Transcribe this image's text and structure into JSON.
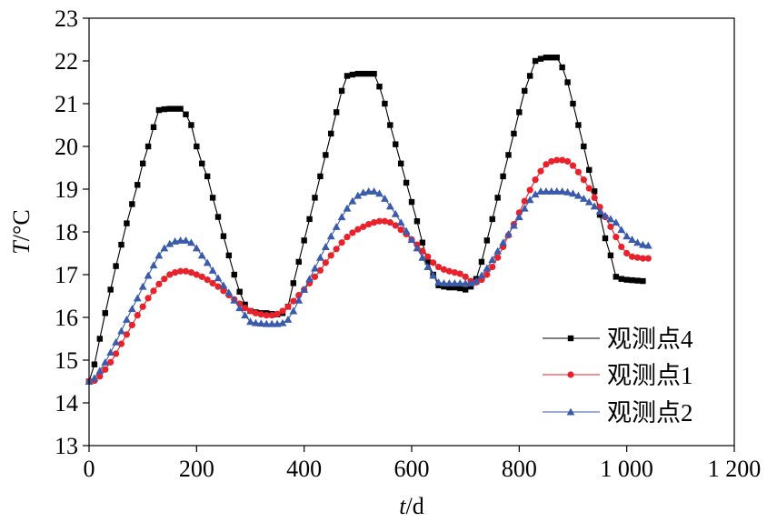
{
  "chart_data": {
    "type": "line",
    "xlabel": "t/d",
    "ylabel": "T/°C",
    "xlim": [
      0,
      1200
    ],
    "ylim": [
      13,
      23
    ],
    "xticks": [
      0,
      200,
      400,
      600,
      800,
      1000,
      1200
    ],
    "xtick_labels": [
      "0",
      "200",
      "400",
      "600",
      "800",
      "1 000",
      "1 200"
    ],
    "yticks": [
      13,
      14,
      15,
      16,
      17,
      18,
      19,
      20,
      21,
      22,
      23
    ],
    "ytick_labels": [
      "13",
      "14",
      "15",
      "16",
      "17",
      "18",
      "19",
      "20",
      "21",
      "22",
      "23"
    ],
    "grid": false,
    "legend_position": "bottom-right",
    "series": [
      {
        "name": "观测点4",
        "color": "#000000",
        "marker": "square",
        "points": [
          [
            0,
            14.5
          ],
          [
            10,
            14.9
          ],
          [
            20,
            15.5
          ],
          [
            30,
            16.1
          ],
          [
            40,
            16.65
          ],
          [
            50,
            17.2
          ],
          [
            60,
            17.7
          ],
          [
            70,
            18.2
          ],
          [
            80,
            18.65
          ],
          [
            90,
            19.1
          ],
          [
            100,
            19.6
          ],
          [
            110,
            20.0
          ],
          [
            120,
            20.45
          ],
          [
            130,
            20.85
          ],
          [
            140,
            20.87
          ],
          [
            150,
            20.88
          ],
          [
            160,
            20.88
          ],
          [
            170,
            20.88
          ],
          [
            180,
            20.75
          ],
          [
            190,
            20.5
          ],
          [
            200,
            20.0
          ],
          [
            210,
            19.6
          ],
          [
            220,
            19.3
          ],
          [
            230,
            18.8
          ],
          [
            240,
            18.35
          ],
          [
            250,
            17.9
          ],
          [
            260,
            17.45
          ],
          [
            270,
            17.0
          ],
          [
            280,
            16.6
          ],
          [
            290,
            16.3
          ],
          [
            300,
            16.15
          ],
          [
            310,
            16.12
          ],
          [
            320,
            16.1
          ],
          [
            330,
            16.1
          ],
          [
            340,
            16.08
          ],
          [
            350,
            16.07
          ],
          [
            360,
            16.1
          ],
          [
            370,
            16.25
          ],
          [
            380,
            16.8
          ],
          [
            390,
            17.3
          ],
          [
            400,
            17.8
          ],
          [
            410,
            18.3
          ],
          [
            420,
            18.8
          ],
          [
            430,
            19.3
          ],
          [
            440,
            19.8
          ],
          [
            450,
            20.3
          ],
          [
            460,
            20.8
          ],
          [
            470,
            21.3
          ],
          [
            480,
            21.65
          ],
          [
            490,
            21.68
          ],
          [
            500,
            21.7
          ],
          [
            510,
            21.7
          ],
          [
            520,
            21.7
          ],
          [
            530,
            21.7
          ],
          [
            540,
            21.4
          ],
          [
            550,
            21.0
          ],
          [
            560,
            20.5
          ],
          [
            570,
            20.05
          ],
          [
            580,
            19.6
          ],
          [
            590,
            19.15
          ],
          [
            600,
            18.7
          ],
          [
            610,
            18.25
          ],
          [
            620,
            17.75
          ],
          [
            630,
            17.3
          ],
          [
            640,
            17.0
          ],
          [
            650,
            16.75
          ],
          [
            660,
            16.72
          ],
          [
            670,
            16.7
          ],
          [
            680,
            16.7
          ],
          [
            690,
            16.68
          ],
          [
            700,
            16.65
          ],
          [
            710,
            16.72
          ],
          [
            720,
            16.9
          ],
          [
            730,
            17.3
          ],
          [
            740,
            17.8
          ],
          [
            750,
            18.3
          ],
          [
            760,
            18.8
          ],
          [
            770,
            19.3
          ],
          [
            780,
            19.8
          ],
          [
            790,
            20.3
          ],
          [
            800,
            20.8
          ],
          [
            810,
            21.3
          ],
          [
            820,
            21.65
          ],
          [
            830,
            22.0
          ],
          [
            840,
            22.05
          ],
          [
            850,
            22.08
          ],
          [
            860,
            22.08
          ],
          [
            870,
            22.08
          ],
          [
            880,
            21.85
          ],
          [
            890,
            21.5
          ],
          [
            900,
            21.0
          ],
          [
            910,
            20.5
          ],
          [
            920,
            20.0
          ],
          [
            930,
            19.45
          ],
          [
            940,
            18.95
          ],
          [
            950,
            18.4
          ],
          [
            960,
            17.85
          ],
          [
            970,
            17.45
          ],
          [
            980,
            16.95
          ],
          [
            990,
            16.9
          ],
          [
            1000,
            16.88
          ],
          [
            1010,
            16.87
          ],
          [
            1020,
            16.86
          ],
          [
            1030,
            16.85
          ]
        ]
      },
      {
        "name": "观测点1",
        "color": "#e8212a",
        "marker": "circle",
        "points": [
          [
            0,
            14.5
          ],
          [
            10,
            14.52
          ],
          [
            20,
            14.62
          ],
          [
            30,
            14.78
          ],
          [
            40,
            14.95
          ],
          [
            50,
            15.15
          ],
          [
            60,
            15.38
          ],
          [
            70,
            15.6
          ],
          [
            80,
            15.82
          ],
          [
            90,
            16.05
          ],
          [
            100,
            16.25
          ],
          [
            110,
            16.45
          ],
          [
            120,
            16.62
          ],
          [
            130,
            16.78
          ],
          [
            140,
            16.9
          ],
          [
            150,
            17.0
          ],
          [
            160,
            17.05
          ],
          [
            170,
            17.08
          ],
          [
            180,
            17.08
          ],
          [
            190,
            17.05
          ],
          [
            200,
            17.0
          ],
          [
            210,
            16.95
          ],
          [
            220,
            16.88
          ],
          [
            230,
            16.8
          ],
          [
            240,
            16.72
          ],
          [
            250,
            16.62
          ],
          [
            260,
            16.52
          ],
          [
            270,
            16.42
          ],
          [
            280,
            16.32
          ],
          [
            290,
            16.22
          ],
          [
            300,
            16.15
          ],
          [
            310,
            16.1
          ],
          [
            320,
            16.07
          ],
          [
            330,
            16.05
          ],
          [
            340,
            16.05
          ],
          [
            350,
            16.08
          ],
          [
            360,
            16.15
          ],
          [
            370,
            16.25
          ],
          [
            380,
            16.38
          ],
          [
            390,
            16.52
          ],
          [
            400,
            16.65
          ],
          [
            410,
            16.8
          ],
          [
            420,
            16.95
          ],
          [
            430,
            17.1
          ],
          [
            440,
            17.28
          ],
          [
            450,
            17.45
          ],
          [
            460,
            17.6
          ],
          [
            470,
            17.75
          ],
          [
            480,
            17.88
          ],
          [
            490,
            17.98
          ],
          [
            500,
            18.06
          ],
          [
            510,
            18.12
          ],
          [
            520,
            18.18
          ],
          [
            530,
            18.22
          ],
          [
            540,
            18.25
          ],
          [
            550,
            18.25
          ],
          [
            560,
            18.22
          ],
          [
            570,
            18.15
          ],
          [
            580,
            18.05
          ],
          [
            590,
            17.95
          ],
          [
            600,
            17.82
          ],
          [
            610,
            17.7
          ],
          [
            620,
            17.55
          ],
          [
            630,
            17.42
          ],
          [
            640,
            17.28
          ],
          [
            650,
            17.18
          ],
          [
            660,
            17.12
          ],
          [
            670,
            17.08
          ],
          [
            680,
            17.05
          ],
          [
            690,
            17.02
          ],
          [
            700,
            16.95
          ],
          [
            710,
            16.85
          ],
          [
            720,
            16.82
          ],
          [
            730,
            16.88
          ],
          [
            740,
            17.0
          ],
          [
            750,
            17.18
          ],
          [
            760,
            17.4
          ],
          [
            770,
            17.65
          ],
          [
            780,
            17.92
          ],
          [
            790,
            18.18
          ],
          [
            800,
            18.45
          ],
          [
            810,
            18.72
          ],
          [
            820,
            18.98
          ],
          [
            830,
            19.22
          ],
          [
            840,
            19.42
          ],
          [
            850,
            19.58
          ],
          [
            860,
            19.65
          ],
          [
            870,
            19.68
          ],
          [
            880,
            19.68
          ],
          [
            890,
            19.65
          ],
          [
            900,
            19.55
          ],
          [
            910,
            19.4
          ],
          [
            920,
            19.22
          ],
          [
            930,
            19.02
          ],
          [
            940,
            18.8
          ],
          [
            950,
            18.58
          ],
          [
            960,
            18.35
          ],
          [
            970,
            18.12
          ],
          [
            980,
            17.88
          ],
          [
            990,
            17.65
          ],
          [
            1000,
            17.5
          ],
          [
            1010,
            17.42
          ],
          [
            1020,
            17.4
          ],
          [
            1030,
            17.38
          ],
          [
            1040,
            17.38
          ]
        ]
      },
      {
        "name": "观测点2",
        "color": "#3a5bab",
        "marker": "triangle",
        "points": [
          [
            0,
            14.5
          ],
          [
            10,
            14.58
          ],
          [
            20,
            14.75
          ],
          [
            30,
            14.95
          ],
          [
            40,
            15.18
          ],
          [
            50,
            15.42
          ],
          [
            60,
            15.68
          ],
          [
            70,
            15.95
          ],
          [
            80,
            16.2
          ],
          [
            90,
            16.45
          ],
          [
            100,
            16.72
          ],
          [
            110,
            16.98
          ],
          [
            120,
            17.22
          ],
          [
            130,
            17.45
          ],
          [
            140,
            17.62
          ],
          [
            150,
            17.72
          ],
          [
            160,
            17.78
          ],
          [
            170,
            17.8
          ],
          [
            180,
            17.8
          ],
          [
            190,
            17.75
          ],
          [
            200,
            17.62
          ],
          [
            210,
            17.45
          ],
          [
            220,
            17.28
          ],
          [
            230,
            17.1
          ],
          [
            240,
            16.92
          ],
          [
            250,
            16.75
          ],
          [
            260,
            16.58
          ],
          [
            270,
            16.4
          ],
          [
            280,
            16.22
          ],
          [
            290,
            16.05
          ],
          [
            300,
            15.9
          ],
          [
            310,
            15.87
          ],
          [
            320,
            15.86
          ],
          [
            330,
            15.85
          ],
          [
            340,
            15.85
          ],
          [
            350,
            15.85
          ],
          [
            360,
            15.87
          ],
          [
            370,
            15.95
          ],
          [
            380,
            16.15
          ],
          [
            390,
            16.4
          ],
          [
            400,
            16.65
          ],
          [
            410,
            16.9
          ],
          [
            420,
            17.15
          ],
          [
            430,
            17.4
          ],
          [
            440,
            17.65
          ],
          [
            450,
            17.9
          ],
          [
            460,
            18.12
          ],
          [
            470,
            18.35
          ],
          [
            480,
            18.55
          ],
          [
            490,
            18.72
          ],
          [
            500,
            18.85
          ],
          [
            510,
            18.92
          ],
          [
            520,
            18.95
          ],
          [
            530,
            18.95
          ],
          [
            540,
            18.9
          ],
          [
            550,
            18.78
          ],
          [
            560,
            18.6
          ],
          [
            570,
            18.42
          ],
          [
            580,
            18.22
          ],
          [
            590,
            18.02
          ],
          [
            600,
            17.82
          ],
          [
            610,
            17.62
          ],
          [
            620,
            17.4
          ],
          [
            630,
            17.18
          ],
          [
            640,
            16.98
          ],
          [
            650,
            16.82
          ],
          [
            660,
            16.8
          ],
          [
            670,
            16.8
          ],
          [
            680,
            16.8
          ],
          [
            690,
            16.8
          ],
          [
            700,
            16.8
          ],
          [
            710,
            16.8
          ],
          [
            720,
            16.85
          ],
          [
            730,
            16.98
          ],
          [
            740,
            17.15
          ],
          [
            750,
            17.35
          ],
          [
            760,
            17.55
          ],
          [
            770,
            17.75
          ],
          [
            780,
            17.95
          ],
          [
            790,
            18.15
          ],
          [
            800,
            18.35
          ],
          [
            810,
            18.55
          ],
          [
            820,
            18.75
          ],
          [
            830,
            18.88
          ],
          [
            840,
            18.95
          ],
          [
            850,
            18.95
          ],
          [
            860,
            18.95
          ],
          [
            870,
            18.95
          ],
          [
            880,
            18.95
          ],
          [
            890,
            18.93
          ],
          [
            900,
            18.9
          ],
          [
            910,
            18.85
          ],
          [
            920,
            18.78
          ],
          [
            930,
            18.7
          ],
          [
            940,
            18.6
          ],
          [
            950,
            18.48
          ],
          [
            960,
            18.38
          ],
          [
            970,
            18.3
          ],
          [
            980,
            18.22
          ],
          [
            990,
            18.05
          ],
          [
            1000,
            17.9
          ],
          [
            1010,
            17.82
          ],
          [
            1020,
            17.75
          ],
          [
            1030,
            17.7
          ],
          [
            1040,
            17.68
          ]
        ]
      }
    ]
  }
}
